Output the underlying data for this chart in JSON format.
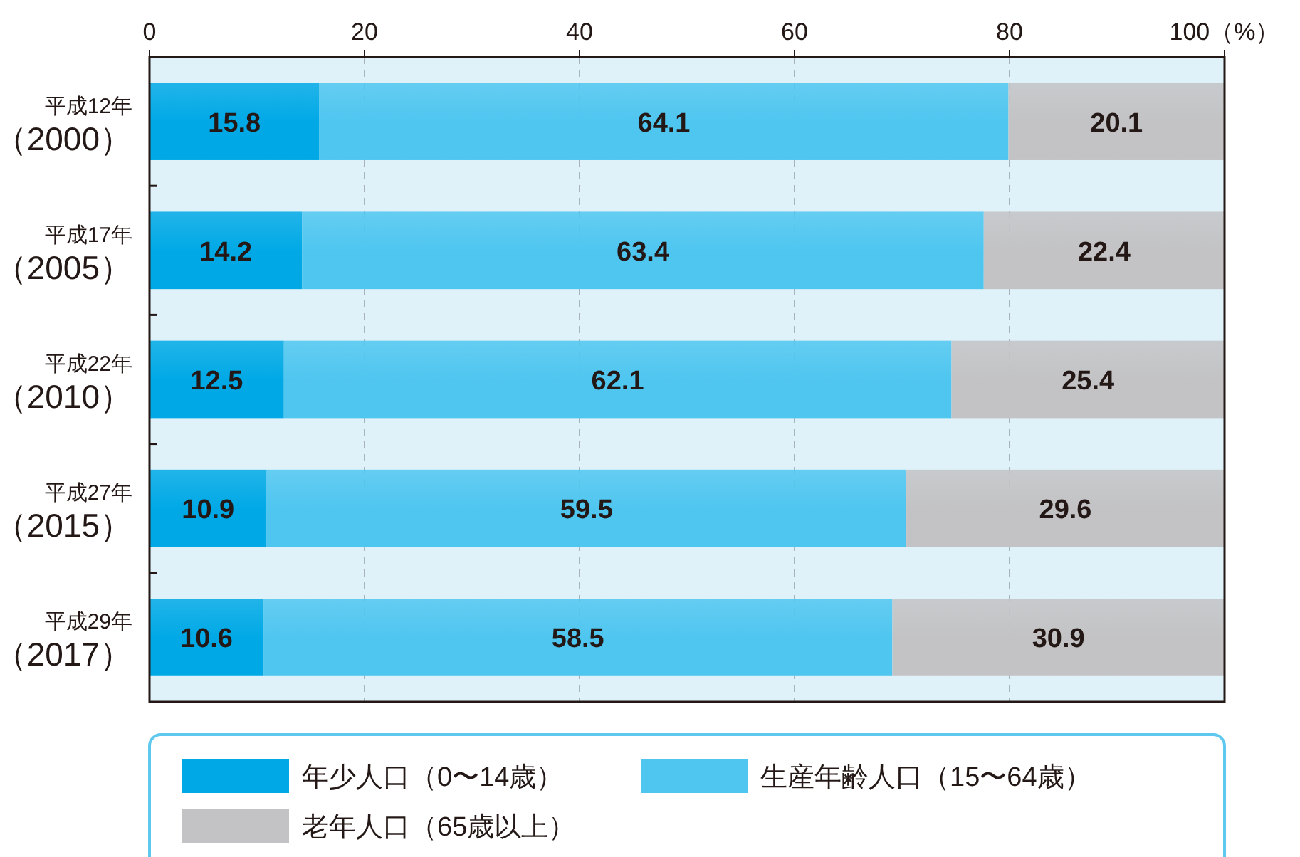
{
  "chart_data": {
    "type": "bar",
    "orientation": "horizontal",
    "stacked": true,
    "categories": [
      "平成12年（2000）",
      "平成17年（2005）",
      "平成22年（2010）",
      "平成27年（2015）",
      "平成29年（2017）"
    ],
    "series": [
      {
        "name": "年少人口（0〜14歳）",
        "color": "#00a9e6",
        "values": [
          15.8,
          14.2,
          12.5,
          10.9,
          10.6
        ]
      },
      {
        "name": "生産年齢人口（15〜64歳）",
        "color": "#4fc6f0",
        "values": [
          64.1,
          63.4,
          62.1,
          59.5,
          58.5
        ]
      },
      {
        "name": "老年人口（65歳以上）",
        "color": "#c3c3c5",
        "values": [
          20.1,
          22.4,
          25.4,
          29.6,
          30.9
        ]
      }
    ],
    "xlim": [
      0,
      100
    ],
    "xticks": [
      0,
      20,
      40,
      60,
      80,
      {
        "value": 100,
        "label": "100（%）"
      }
    ],
    "grid": "x",
    "legend": "bottom",
    "data_labels": true
  }
}
